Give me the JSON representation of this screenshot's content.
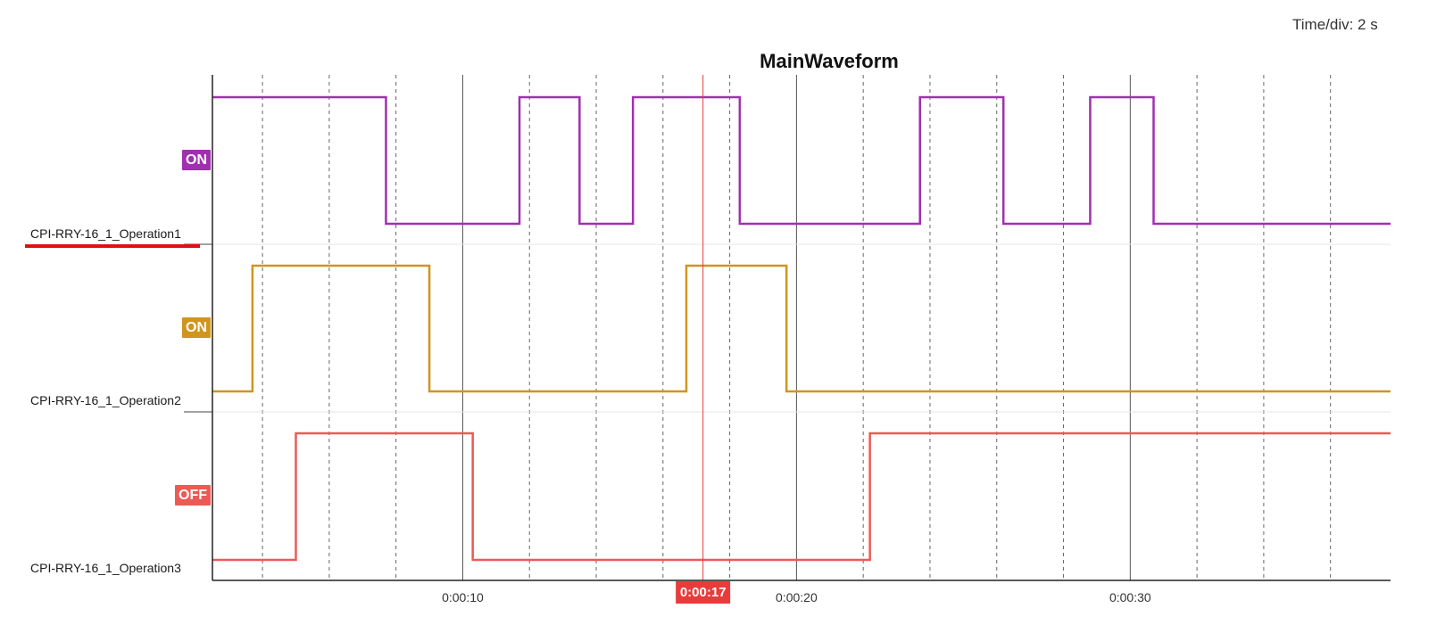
{
  "header": {
    "time_div": "Time/div: 2 s"
  },
  "chart_data": {
    "type": "line",
    "subtype": "digital-step",
    "title": "MainWaveform",
    "x_unit": "seconds",
    "x_range": [
      2.5,
      37.8
    ],
    "grid": {
      "major_every": 10,
      "minor_every": 2
    },
    "x_ticks": [
      {
        "value": 10,
        "label": "0:00:10"
      },
      {
        "value": 20,
        "label": "0:00:20"
      },
      {
        "value": 30,
        "label": "0:00:30"
      }
    ],
    "cursor": {
      "value": 17.2,
      "label": "0:00:17",
      "color": "#ea3b3b"
    },
    "series": [
      {
        "name": "CPI-RRY-16_1_Operation1",
        "color": "#a030b0",
        "state_label": "ON",
        "selected": true,
        "transitions": [
          [
            2.5,
            1
          ],
          [
            7.7,
            0
          ],
          [
            11.7,
            1
          ],
          [
            13.5,
            0
          ],
          [
            15.1,
            1
          ],
          [
            18.3,
            0
          ],
          [
            23.7,
            1
          ],
          [
            26.2,
            0
          ],
          [
            28.8,
            1
          ],
          [
            30.7,
            0
          ],
          [
            37.8,
            0
          ]
        ]
      },
      {
        "name": "CPI-RRY-16_1_Operation2",
        "color": "#d0951f",
        "state_label": "ON",
        "selected": false,
        "transitions": [
          [
            2.5,
            0
          ],
          [
            3.7,
            1
          ],
          [
            9.0,
            0
          ],
          [
            16.7,
            1
          ],
          [
            19.7,
            0
          ],
          [
            37.8,
            0
          ]
        ]
      },
      {
        "name": "CPI-RRY-16_1_Operation3",
        "color": "#ec5a56",
        "state_label": "OFF",
        "selected": false,
        "transitions": [
          [
            2.5,
            0
          ],
          [
            5.0,
            1
          ],
          [
            10.3,
            0
          ],
          [
            22.2,
            1
          ],
          [
            37.8,
            1
          ]
        ]
      }
    ]
  }
}
